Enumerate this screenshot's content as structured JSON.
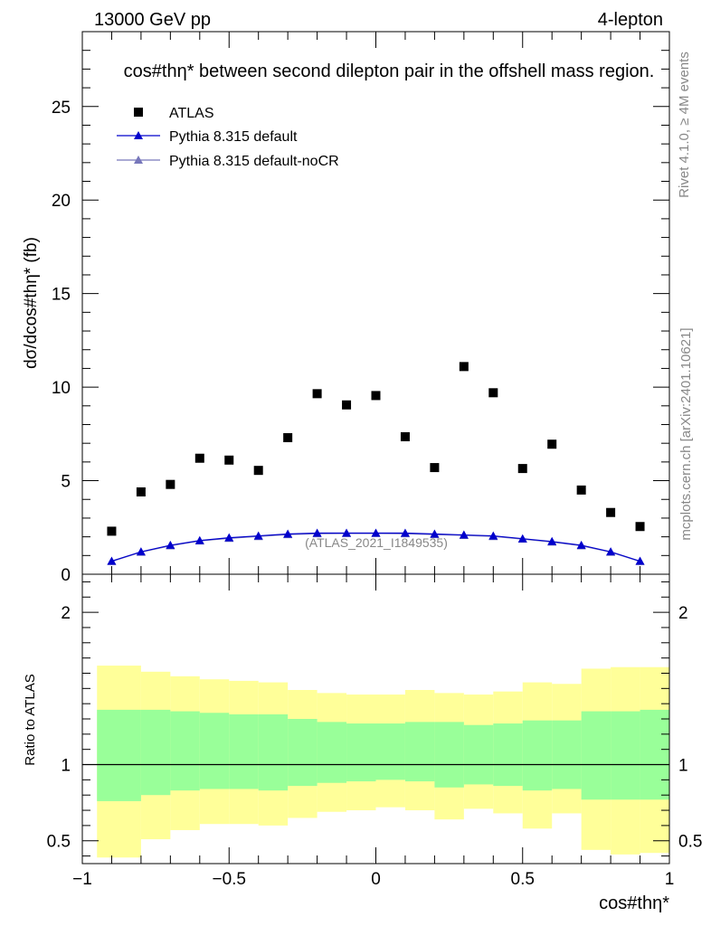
{
  "header": {
    "energy_label": "13000 GeV pp",
    "process_label": "4-lepton"
  },
  "side_labels": {
    "rivet": "Rivet 4.1.0, ≥ 4M events",
    "mcplots": "mcplots.cern.ch [arXiv:2401.10621]"
  },
  "chart_data": [
    {
      "type": "scatter",
      "panel": "main",
      "title": "cos#thη* between second dilepton pair in the offshell mass region.",
      "xlabel": "cos#thη*",
      "ylabel": "dσ/dcos#thη* (fb)",
      "xlim": [
        -1.0,
        1.0
      ],
      "ylim": [
        0,
        29
      ],
      "yticks": [
        0,
        5,
        10,
        15,
        20,
        25
      ],
      "ytick_labels": [
        "0",
        "5",
        "10",
        "15",
        "20",
        "25"
      ],
      "watermark": "(ATLAS_2021_I1849535)",
      "legend_position": "top-left",
      "x": [
        -0.9,
        -0.8,
        -0.7,
        -0.6,
        -0.5,
        -0.4,
        -0.3,
        -0.2,
        -0.1,
        0.0,
        0.1,
        0.2,
        0.3,
        0.4,
        0.5,
        0.6,
        0.7,
        0.8,
        0.9
      ],
      "series": [
        {
          "name": "ATLAS",
          "marker": "square",
          "color": "#000000",
          "values": [
            2.3,
            4.4,
            4.8,
            6.2,
            6.1,
            5.55,
            7.3,
            9.65,
            9.05,
            9.55,
            7.35,
            5.7,
            11.1,
            9.7,
            5.65,
            6.95,
            4.5,
            3.3,
            2.55
          ]
        },
        {
          "name": "Pythia 8.315 default",
          "marker": "triangle",
          "color": "#0000cc",
          "values": [
            0.7,
            1.2,
            1.55,
            1.8,
            1.95,
            2.05,
            2.15,
            2.2,
            2.2,
            2.2,
            2.2,
            2.15,
            2.1,
            2.05,
            1.9,
            1.75,
            1.55,
            1.2,
            0.7
          ]
        },
        {
          "name": "Pythia 8.315 default-noCR",
          "marker": "triangle",
          "color": "#7777bb",
          "values": [
            0.68,
            1.18,
            1.52,
            1.78,
            1.92,
            2.02,
            2.12,
            2.17,
            2.18,
            2.18,
            2.17,
            2.12,
            2.08,
            2.02,
            1.88,
            1.72,
            1.52,
            1.18,
            0.68
          ]
        }
      ]
    },
    {
      "type": "area",
      "panel": "ratio",
      "ylabel": "Ratio to ATLAS",
      "xlabel": "cos#thη*",
      "xlim": [
        -1.0,
        1.0
      ],
      "ylim": [
        0.35,
        2.25
      ],
      "yticks": [
        0.5,
        1,
        2
      ],
      "ytick_labels": [
        "0.5",
        "1",
        "2"
      ],
      "xticks": [
        -1,
        -0.5,
        0,
        0.5,
        1
      ],
      "xtick_labels": [
        "−1",
        "−0.5",
        "0",
        "0.5",
        "1"
      ],
      "reference_line": 1,
      "bin_edges": [
        -0.95,
        -0.8,
        -0.7,
        -0.6,
        -0.5,
        -0.4,
        -0.3,
        -0.2,
        -0.1,
        0.0,
        0.1,
        0.2,
        0.3,
        0.4,
        0.5,
        0.6,
        0.7,
        0.8,
        0.9,
        1.0
      ],
      "bands": [
        {
          "name": "stat",
          "color": "#99ff99",
          "lower": [
            0.76,
            0.8,
            0.83,
            0.84,
            0.84,
            0.83,
            0.86,
            0.88,
            0.89,
            0.9,
            0.89,
            0.85,
            0.87,
            0.86,
            0.83,
            0.84,
            0.77,
            0.77,
            0.77
          ],
          "upper": [
            1.36,
            1.36,
            1.35,
            1.34,
            1.33,
            1.33,
            1.3,
            1.28,
            1.27,
            1.27,
            1.28,
            1.28,
            1.26,
            1.27,
            1.29,
            1.29,
            1.35,
            1.35,
            1.36
          ]
        },
        {
          "name": "total",
          "color": "#ffff99",
          "lower": [
            0.39,
            0.51,
            0.57,
            0.61,
            0.61,
            0.6,
            0.65,
            0.69,
            0.7,
            0.72,
            0.7,
            0.64,
            0.71,
            0.68,
            0.58,
            0.68,
            0.44,
            0.41,
            0.42
          ],
          "upper": [
            1.65,
            1.61,
            1.58,
            1.56,
            1.55,
            1.54,
            1.49,
            1.47,
            1.46,
            1.46,
            1.49,
            1.47,
            1.46,
            1.48,
            1.54,
            1.53,
            1.63,
            1.64,
            1.64
          ]
        }
      ]
    }
  ]
}
